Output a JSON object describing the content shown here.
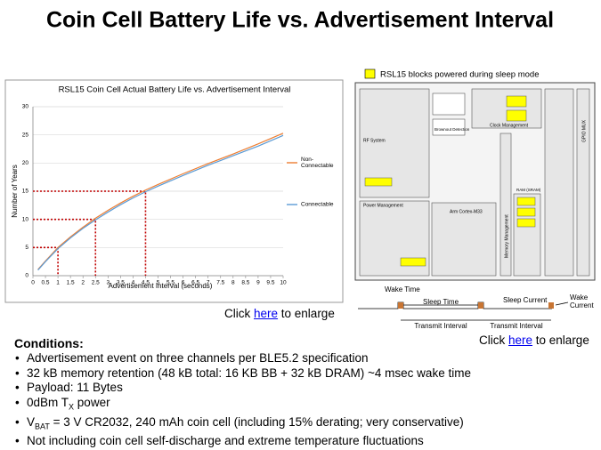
{
  "header": {
    "title": "Coin Cell Battery Life vs. Advertisement Interval"
  },
  "chart_data": {
    "type": "line",
    "title": "RSL15 Coin Cell Actual Battery Life vs. Advertisement Interval",
    "x_label": "Advertisement Interval (seconds)",
    "y_label": "Number of Years",
    "x": [
      0.2,
      0.5,
      1,
      1.5,
      2,
      2.5,
      3,
      3.5,
      4,
      4.5,
      5,
      6,
      7,
      8,
      9,
      10
    ],
    "series": [
      {
        "name": "Non-\nConnectable",
        "color": "#ed7d31",
        "values": [
          1.1,
          2.6,
          5.0,
          6.9,
          8.6,
          10.2,
          11.6,
          12.9,
          14.1,
          15.2,
          16.2,
          18.1,
          19.9,
          21.6,
          23.4,
          25.3
        ]
      },
      {
        "name": "Connectable",
        "color": "#5b9bd5",
        "values": [
          1.0,
          2.5,
          4.8,
          6.7,
          8.4,
          9.9,
          11.3,
          12.6,
          13.8,
          14.9,
          15.9,
          17.8,
          19.6,
          21.3,
          23.0,
          24.9
        ]
      }
    ],
    "reference_points": [
      {
        "x": 1,
        "y": 5
      },
      {
        "x": 2.5,
        "y": 10
      },
      {
        "x": 4.5,
        "y": 15
      }
    ],
    "reference_color": "#c00000",
    "xlim": [
      0,
      10
    ],
    "ylim": [
      0,
      30
    ],
    "xticks": [
      0,
      0.5,
      1,
      1.5,
      2,
      2.5,
      3,
      3.5,
      4,
      4.5,
      5,
      5.5,
      6,
      6.5,
      7,
      7.5,
      8,
      8.5,
      9,
      9.5,
      10
    ],
    "yticks": [
      0,
      5,
      10,
      15,
      20,
      25,
      30
    ],
    "grid": true,
    "legend": "right"
  },
  "chart_link": {
    "prefix": "Click ",
    "link": "here",
    "suffix": " to enlarge"
  },
  "block_diagram": {
    "legend": "RSL15 blocks powered during sleep mode",
    "blocks": [
      "RF System",
      "Power Management",
      "Arm Cortex-M33",
      "Clock Management",
      "Memory Management",
      "Brownout Detection",
      "GPIO MUX",
      "RAM (SRAM)"
    ]
  },
  "timing": {
    "wake_time": "Wake Time",
    "sleep_time": "Sleep Time",
    "sleep_current": "Sleep Current",
    "wake_current": "Wake\nCurrent",
    "interval_1": "Transmit Interval",
    "interval_2": "Transmit Interval"
  },
  "diagram_link": {
    "prefix": "Click ",
    "link": "here",
    "suffix": " to enlarge"
  },
  "conditions": {
    "title": "Conditions:",
    "items": [
      {
        "text": "Advertisement event on three channels per BLE5.2 specification"
      },
      {
        "text": "32 kB memory retention (48 kB total: 16 KB BB + 32 kB DRAM) ~4 msec wake time"
      },
      {
        "text": "Payload: 11 Bytes"
      },
      {
        "pre": "0dBm T",
        "sub": "X",
        "post": " power"
      },
      {
        "pre": "V",
        "sub": "BAT",
        "post": " = 3 V CR2032, 240 mAh coin cell (including 15% derating; very conservative)"
      },
      {
        "text": "Not including coin cell self-discharge and extreme temperature fluctuations"
      }
    ]
  }
}
